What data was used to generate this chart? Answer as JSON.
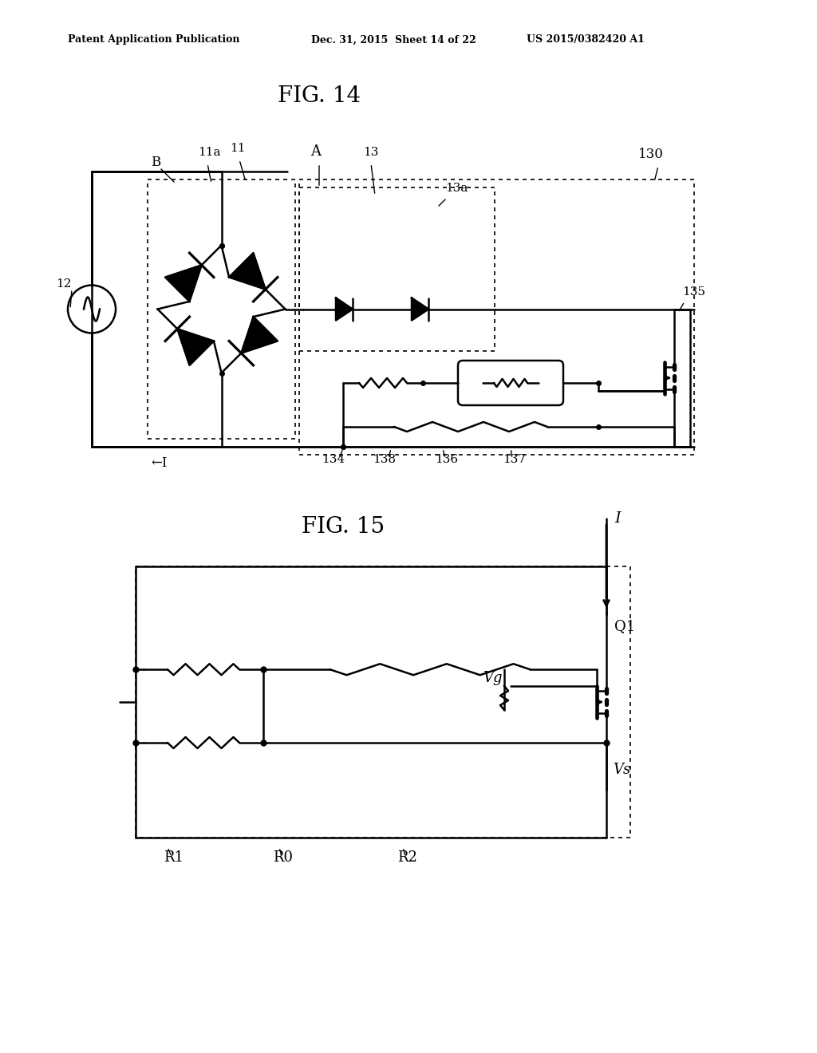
{
  "bg_color": "#ffffff",
  "header_left": "Patent Application Publication",
  "header_mid": "Dec. 31, 2015  Sheet 14 of 22",
  "header_right": "US 2015/0382420 A1",
  "fig14_title": "FIG. 14",
  "fig15_title": "FIG. 15",
  "line_color": "#000000",
  "text_color": "#000000"
}
